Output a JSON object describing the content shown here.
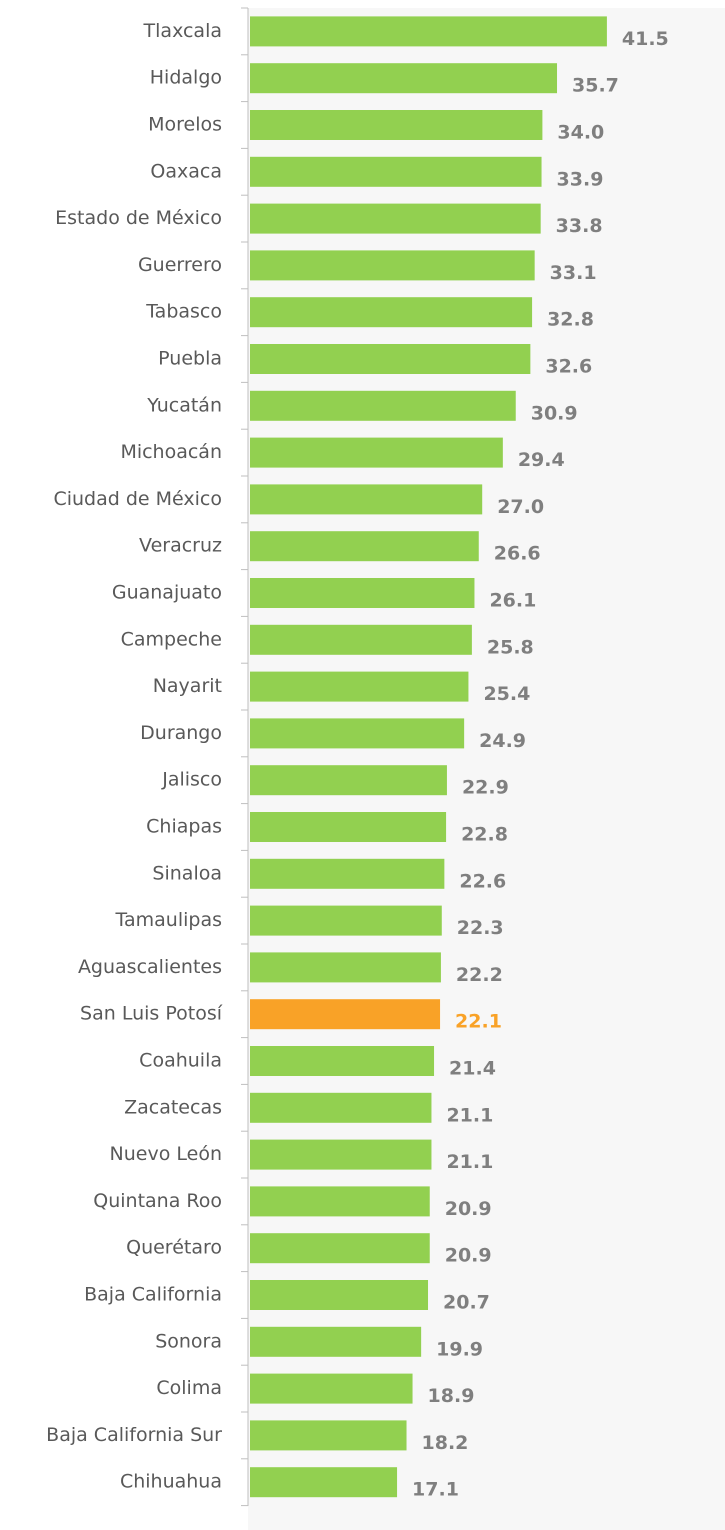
{
  "chart_data": {
    "type": "barh",
    "categories": [
      "Tlaxcala",
      "Hidalgo",
      "Morelos",
      "Oaxaca",
      "Estado de México",
      "Guerrero",
      "Tabasco",
      "Puebla",
      "Yucatán",
      "Michoacán",
      "Ciudad de México",
      "Veracruz",
      "Guanajuato",
      "Campeche",
      "Nayarit",
      "Durango",
      "Jalisco",
      "Chiapas",
      "Sinaloa",
      "Tamaulipas",
      "Aguascalientes",
      "San Luis Potosí",
      "Coahuila",
      "Zacatecas",
      "Nuevo León",
      "Quintana Roo",
      "Querétaro",
      "Baja California",
      "Sonora",
      "Colima",
      "Baja California Sur",
      "Chihuahua"
    ],
    "values": [
      41.5,
      35.7,
      34.0,
      33.9,
      33.8,
      33.1,
      32.8,
      32.6,
      30.9,
      29.4,
      27.0,
      26.6,
      26.1,
      25.8,
      25.4,
      24.9,
      22.9,
      22.8,
      22.6,
      22.3,
      22.2,
      22.1,
      21.4,
      21.1,
      21.1,
      20.9,
      20.9,
      20.7,
      19.9,
      18.9,
      18.2,
      17.1
    ],
    "value_labels": [
      "41.5",
      "35.7",
      "34.0",
      "33.9",
      "33.8",
      "33.1",
      "32.8",
      "32.6",
      "30.9",
      "29.4",
      "27.0",
      "26.6",
      "26.1",
      "25.8",
      "25.4",
      "24.9",
      "22.9",
      "22.8",
      "22.6",
      "22.3",
      "22.2",
      "22.1",
      "21.4",
      "21.1",
      "21.1",
      "20.9",
      "20.9",
      "20.7",
      "19.9",
      "18.9",
      "18.2",
      "17.1"
    ],
    "colors": [
      "#92d050",
      "#92d050",
      "#92d050",
      "#92d050",
      "#92d050",
      "#92d050",
      "#92d050",
      "#92d050",
      "#92d050",
      "#92d050",
      "#92d050",
      "#92d050",
      "#92d050",
      "#92d050",
      "#92d050",
      "#92d050",
      "#92d050",
      "#92d050",
      "#92d050",
      "#92d050",
      "#92d050",
      "#f9a227",
      "#92d050",
      "#92d050",
      "#92d050",
      "#92d050",
      "#92d050",
      "#92d050",
      "#92d050",
      "#92d050",
      "#92d050",
      "#92d050"
    ],
    "label_colors": [
      "#7f7f7f",
      "#7f7f7f",
      "#7f7f7f",
      "#7f7f7f",
      "#7f7f7f",
      "#7f7f7f",
      "#7f7f7f",
      "#7f7f7f",
      "#7f7f7f",
      "#7f7f7f",
      "#7f7f7f",
      "#7f7f7f",
      "#7f7f7f",
      "#7f7f7f",
      "#7f7f7f",
      "#7f7f7f",
      "#7f7f7f",
      "#7f7f7f",
      "#7f7f7f",
      "#7f7f7f",
      "#7f7f7f",
      "#f9a227",
      "#7f7f7f",
      "#7f7f7f",
      "#7f7f7f",
      "#7f7f7f",
      "#7f7f7f",
      "#7f7f7f",
      "#7f7f7f",
      "#7f7f7f",
      "#7f7f7f",
      "#7f7f7f"
    ]
  }
}
